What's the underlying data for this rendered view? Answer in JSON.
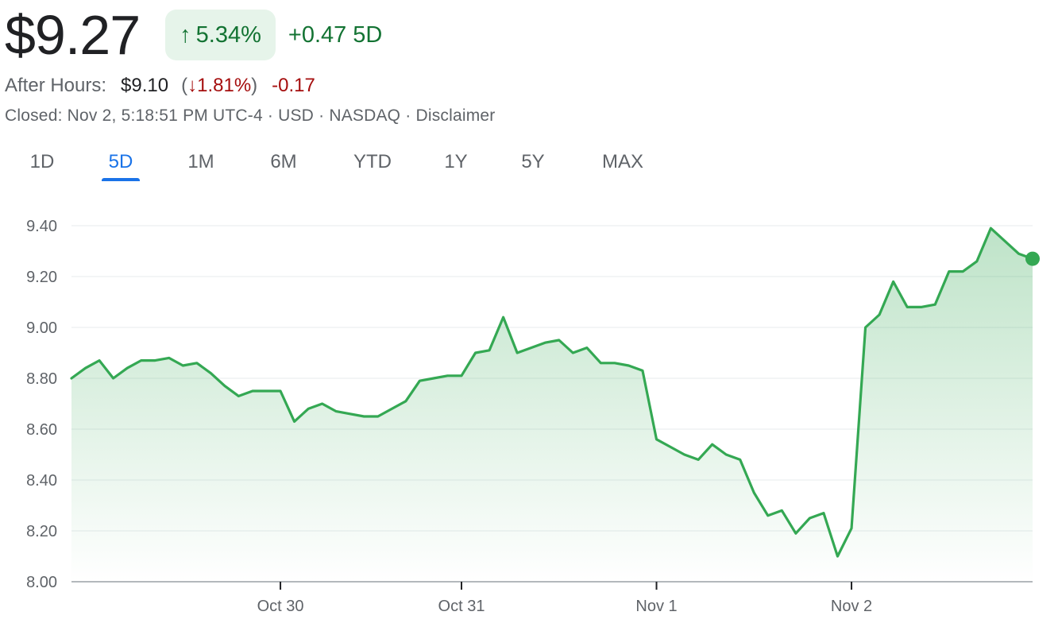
{
  "quote": {
    "price": "$9.27",
    "change_arrow": "↑",
    "change_pct": "5.34%",
    "change_abs": "+0.47",
    "change_period": "5D"
  },
  "after_hours": {
    "label": "After Hours:",
    "price": "$9.10",
    "open_paren": "(",
    "arrow": "↓",
    "pct": "1.81%",
    "close_paren": ")",
    "change": "-0.17"
  },
  "meta": {
    "closed": "Closed: Nov 2, 5:18:51 PM UTC-4",
    "sep": " · ",
    "currency": "USD",
    "exchange": "NASDAQ",
    "disclaimer": "Disclaimer"
  },
  "tabs": [
    {
      "label": "1D",
      "active": false
    },
    {
      "label": "5D",
      "active": true
    },
    {
      "label": "1M",
      "active": false
    },
    {
      "label": "6M",
      "active": false
    },
    {
      "label": "YTD",
      "active": false
    },
    {
      "label": "1Y",
      "active": false
    },
    {
      "label": "5Y",
      "active": false
    },
    {
      "label": "MAX",
      "active": false
    }
  ],
  "colors": {
    "positive": "#34a853",
    "positive_text": "#137333",
    "negative_text": "#a50e0e",
    "active_tab": "#1a73e8"
  },
  "chart_data": {
    "type": "area",
    "title": "",
    "xlabel": "",
    "ylabel": "",
    "ylim": [
      8.0,
      9.4
    ],
    "yticks": [
      "9.40",
      "9.20",
      "9.00",
      "8.80",
      "8.60",
      "8.40",
      "8.20",
      "8.00"
    ],
    "xtick_labels": [
      {
        "label": "Oct 30",
        "index": 15
      },
      {
        "label": "Oct 31",
        "index": 28
      },
      {
        "label": "Nov 1",
        "index": 42
      },
      {
        "label": "Nov 2",
        "index": 56
      }
    ],
    "grid": true,
    "end_marker": true,
    "values": [
      8.8,
      8.84,
      8.87,
      8.8,
      8.84,
      8.87,
      8.87,
      8.88,
      8.85,
      8.86,
      8.82,
      8.77,
      8.73,
      8.75,
      8.75,
      8.75,
      8.63,
      8.68,
      8.7,
      8.67,
      8.66,
      8.65,
      8.65,
      8.68,
      8.71,
      8.79,
      8.8,
      8.81,
      8.81,
      8.9,
      8.91,
      9.04,
      8.9,
      8.92,
      8.94,
      8.95,
      8.9,
      8.92,
      8.86,
      8.86,
      8.85,
      8.83,
      8.56,
      8.53,
      8.5,
      8.48,
      8.54,
      8.5,
      8.48,
      8.35,
      8.26,
      8.28,
      8.19,
      8.25,
      8.27,
      8.1,
      8.21,
      9.0,
      9.05,
      9.18,
      9.08,
      9.08,
      9.09,
      9.22,
      9.22,
      9.26,
      9.39,
      9.34,
      9.29,
      9.27
    ]
  }
}
